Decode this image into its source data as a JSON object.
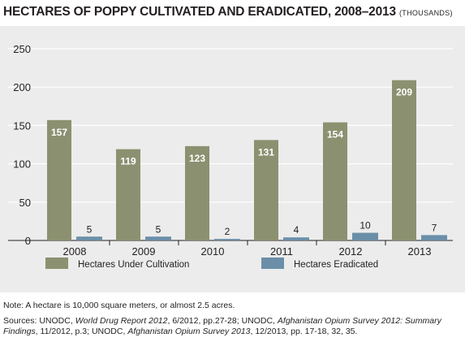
{
  "title": {
    "main": "HECTARES OF POPPY CULTIVATED AND ERADICATED, 2008–2013",
    "unit": "(THOUSANDS)"
  },
  "chart_data": {
    "type": "bar",
    "categories": [
      "2008",
      "2009",
      "2010",
      "2011",
      "2012",
      "2013"
    ],
    "series": [
      {
        "name": "Hectares Under Cultivation",
        "values": [
          157,
          119,
          123,
          131,
          154,
          209
        ],
        "color": "#8b9170"
      },
      {
        "name": "Hectares Eradicated",
        "values": [
          5,
          5,
          2,
          4,
          10,
          7
        ],
        "color": "#6b8fa8"
      }
    ],
    "ylim": [
      0,
      250
    ],
    "yticks": [
      0,
      50,
      100,
      150,
      200,
      250
    ],
    "grid": true,
    "legend_position": "bottom",
    "data_labels": true
  },
  "notes": {
    "note": "Note: A hectare is 10,000 square meters, or almost 2.5 acres.",
    "sources": [
      {
        "text": "Sources: UNODC, ",
        "italic": false
      },
      {
        "text": "World Drug Report 2012",
        "italic": true
      },
      {
        "text": ", 6/2012, pp.27-28; UNODC, ",
        "italic": false
      },
      {
        "text": "Afghanistan Opium Survey 2012: Summary Findings",
        "italic": true
      },
      {
        "text": ", 11/2012, p.3; UNODC, ",
        "italic": false
      },
      {
        "text": "Afghanistan Opium Survey 2013",
        "italic": true
      },
      {
        "text": ", 12/2013, pp. 17-18, 32, 35.",
        "italic": false
      }
    ]
  }
}
